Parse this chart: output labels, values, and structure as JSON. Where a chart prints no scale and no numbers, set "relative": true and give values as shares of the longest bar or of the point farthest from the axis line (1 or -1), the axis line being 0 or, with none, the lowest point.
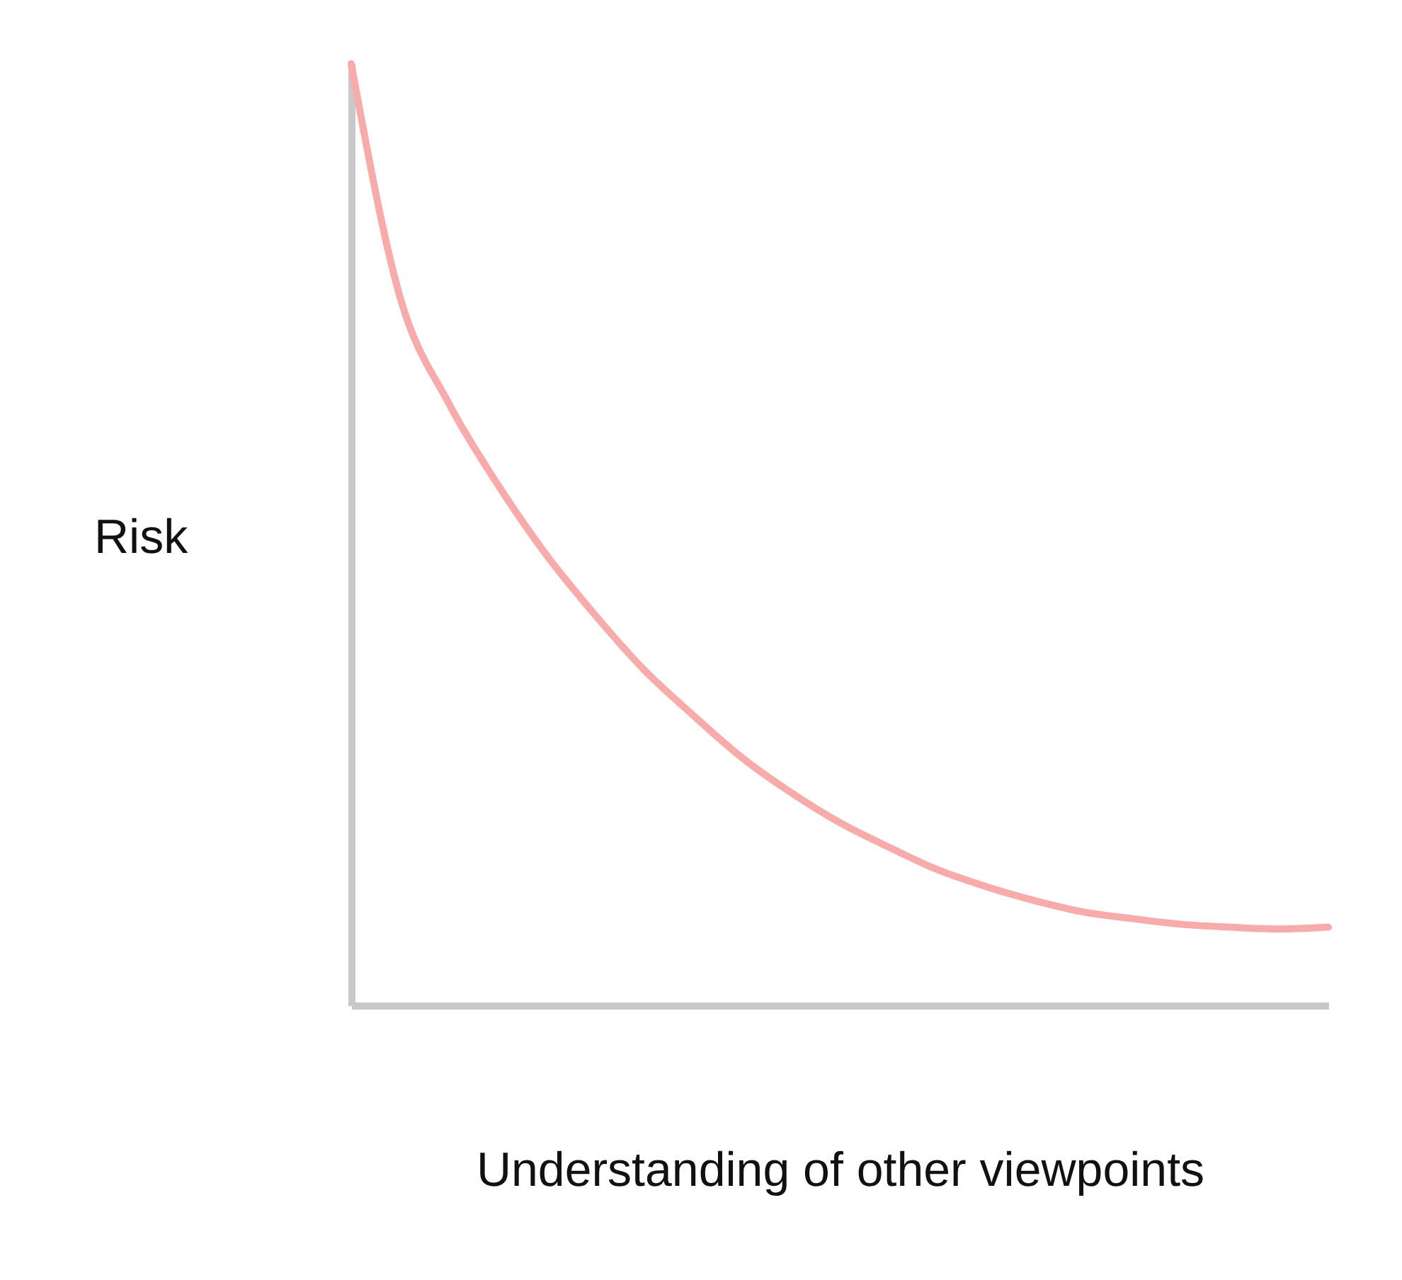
{
  "chart_data": {
    "type": "line",
    "relative": true,
    "xlabel": "Understanding of other viewpoints",
    "ylabel": "Risk",
    "grid": false,
    "tick_labels": false,
    "categories": [
      null,
      null,
      null,
      null,
      null,
      null,
      null,
      null,
      null,
      null,
      null,
      null,
      null,
      null,
      null,
      null,
      null,
      null,
      null,
      null,
      null
    ],
    "series": [
      {
        "color": "#f8abab",
        "values": [
          1.0,
          0.752,
          0.639,
          0.553,
          0.478,
          0.414,
          0.356,
          0.308,
          0.263,
          0.226,
          0.194,
          0.168,
          0.144,
          0.126,
          0.111,
          0.099,
          0.092,
          0.086,
          0.083,
          0.081,
          0.083
        ]
      }
    ]
  }
}
